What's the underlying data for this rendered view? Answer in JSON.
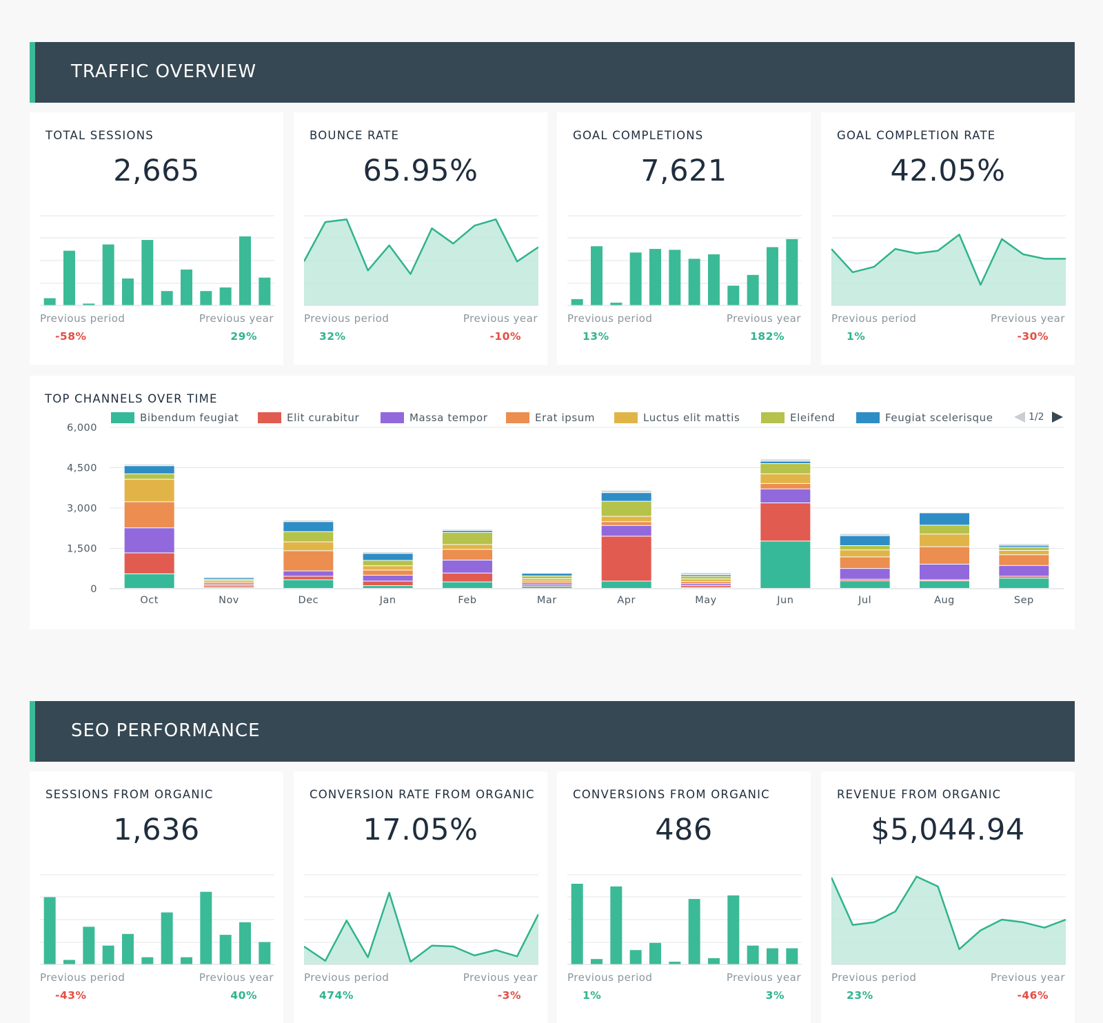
{
  "colors": {
    "header_bg": "#364853",
    "accent": "#3bba97",
    "positive": "#2fb38d",
    "negative": "#e34e44",
    "area_fill": "#c4eade"
  },
  "sections": {
    "traffic": {
      "title": "TRAFFIC OVERVIEW",
      "kpis": [
        {
          "title": "TOTAL SESSIONS",
          "value": "2,665",
          "chart": "bar",
          "series": [
            8,
            61,
            2,
            68,
            30,
            73,
            16,
            40,
            16,
            20,
            77,
            31
          ],
          "prev_period_label": "Previous period",
          "prev_period": "-58%",
          "prev_period_dir": "neg",
          "prev_year_label": "Previous year",
          "prev_year": "29%",
          "prev_year_dir": "pos"
        },
        {
          "title": "BOUNCE RATE",
          "value": "65.95%",
          "chart": "area",
          "series": [
            49,
            93,
            96,
            39,
            67,
            35,
            86,
            69,
            89,
            96,
            49,
            65
          ],
          "prev_period_label": "Previous period",
          "prev_period": "32%",
          "prev_period_dir": "pos",
          "prev_year_label": "Previous year",
          "prev_year": "-10%",
          "prev_year_dir": "neg"
        },
        {
          "title": "GOAL COMPLETIONS",
          "value": "7,621",
          "chart": "bar",
          "series": [
            7,
            66,
            3,
            59,
            63,
            62,
            52,
            57,
            22,
            34,
            65,
            74
          ],
          "prev_period_label": "Previous period",
          "prev_period": "13%",
          "prev_period_dir": "pos",
          "prev_year_label": "Previous year",
          "prev_year": "182%",
          "prev_year_dir": "pos"
        },
        {
          "title": "GOAL COMPLETION RATE",
          "value": "42.05%",
          "chart": "area",
          "series": [
            63,
            37,
            43,
            63,
            58,
            61,
            79,
            23,
            74,
            57,
            52,
            52
          ],
          "prev_period_label": "Previous period",
          "prev_period": "1%",
          "prev_period_dir": "pos",
          "prev_year_label": "Previous year",
          "prev_year": "-30%",
          "prev_year_dir": "neg"
        }
      ]
    },
    "seo": {
      "title": "SEO PERFORMANCE",
      "kpis": [
        {
          "title": "SESSIONS FROM ORGANIC",
          "value": "1,636",
          "chart": "bar",
          "series": [
            75,
            5,
            42,
            21,
            34,
            8,
            58,
            8,
            81,
            33,
            47,
            25
          ],
          "prev_period_label": "Previous period",
          "prev_period": "-43%",
          "prev_period_dir": "neg",
          "prev_year_label": "Previous year",
          "prev_year": "40%",
          "prev_year_dir": "pos"
        },
        {
          "title": "CONVERSION RATE FROM ORGANIC",
          "value": "17.05%",
          "chart": "area",
          "series": [
            20,
            4,
            49,
            8,
            80,
            3,
            21,
            20,
            10,
            16,
            9,
            56
          ],
          "prev_period_label": "Previous period",
          "prev_period": "474%",
          "prev_period_dir": "pos",
          "prev_year_label": "Previous year",
          "prev_year": "-3%",
          "prev_year_dir": "neg"
        },
        {
          "title": "CONVERSIONS FROM ORGANIC",
          "value": "486",
          "chart": "bar",
          "series": [
            90,
            6,
            87,
            16,
            24,
            3,
            73,
            7,
            77,
            21,
            18,
            18
          ],
          "prev_period_label": "Previous period",
          "prev_period": "1%",
          "prev_period_dir": "pos",
          "prev_year_label": "Previous year",
          "prev_year": "3%",
          "prev_year_dir": "pos"
        },
        {
          "title": "REVENUE FROM ORGANIC",
          "value": "$5,044.94",
          "chart": "area",
          "series": [
            97,
            44,
            47,
            59,
            98,
            87,
            17,
            38,
            50,
            47,
            41,
            50
          ],
          "prev_period_label": "Previous period",
          "prev_period": "23%",
          "prev_period_dir": "pos",
          "prev_year_label": "Previous year",
          "prev_year": "-46%",
          "prev_year_dir": "neg"
        }
      ]
    }
  },
  "channels_card": {
    "title": "TOP CHANNELS OVER TIME",
    "pager": "1/2"
  },
  "chart_data": {
    "type": "bar",
    "stacked": true,
    "categories": [
      "Oct",
      "Nov",
      "Dec",
      "Jan",
      "Feb",
      "Mar",
      "Apr",
      "May",
      "Jun",
      "Jul",
      "Aug",
      "Sep"
    ],
    "ylim": [
      0,
      6000
    ],
    "yticks": [
      0,
      1500,
      3000,
      4500,
      6000
    ],
    "ytick_labels": [
      "0",
      "1,500",
      "3,000",
      "4,500",
      "6,000"
    ],
    "grid": true,
    "legend_position": "top",
    "series": [
      {
        "name": "Bibendum feugiat",
        "color": "#36b999",
        "values": [
          540,
          30,
          320,
          100,
          240,
          70,
          270,
          30,
          1760,
          280,
          280,
          380
        ]
      },
      {
        "name": "Elit curabitur",
        "color": "#e25b50",
        "values": [
          780,
          60,
          130,
          170,
          330,
          60,
          1670,
          70,
          1420,
          60,
          40,
          70
        ]
      },
      {
        "name": "Massa tempor",
        "color": "#9169dc",
        "values": [
          930,
          50,
          200,
          220,
          480,
          70,
          400,
          70,
          520,
          400,
          580,
          400
        ]
      },
      {
        "name": "Erat ipsum",
        "color": "#eb8e50",
        "values": [
          970,
          80,
          750,
          190,
          400,
          70,
          140,
          80,
          200,
          430,
          650,
          400
        ]
      },
      {
        "name": "Luctus elit mattis",
        "color": "#e1b448",
        "values": [
          840,
          70,
          330,
          160,
          180,
          90,
          200,
          100,
          360,
          260,
          470,
          160
        ]
      },
      {
        "name": "Eleifend",
        "color": "#b5c24b",
        "values": [
          200,
          50,
          380,
          200,
          450,
          100,
          560,
          100,
          380,
          160,
          330,
          120
        ]
      },
      {
        "name": "Feugiat scelerisque",
        "color": "#2f8dc6",
        "values": [
          300,
          60,
          370,
          260,
          70,
          100,
          320,
          60,
          90,
          370,
          460,
          70
        ]
      },
      {
        "name": "",
        "color": "#cfd8dc",
        "values": [
          60,
          20,
          60,
          60,
          50,
          30,
          90,
          80,
          80,
          80,
          20,
          60
        ]
      }
    ]
  }
}
